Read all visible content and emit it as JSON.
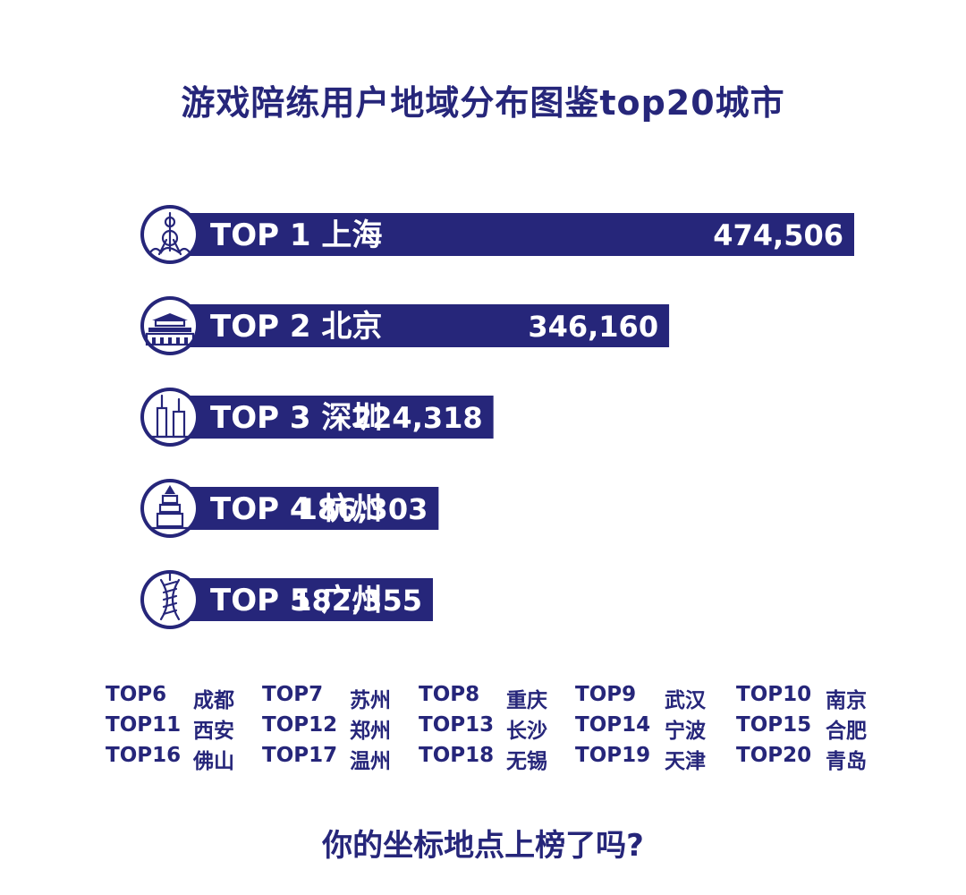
{
  "title": "游戏陪练用户地域分布图鉴top20城市",
  "colors": {
    "brand": "#26267a",
    "background": "#ffffff",
    "bar_text": "#ffffff"
  },
  "chart_data": {
    "type": "bar",
    "orientation": "horizontal",
    "title": "游戏陪练用户地域分布图鉴top20城市",
    "xlabel": "",
    "ylabel": "",
    "grid": false,
    "categories": [
      "TOP 1 上海",
      "TOP 2 北京",
      "TOP 3 深圳",
      "TOP 4 杭州",
      "TOP 5 广州"
    ],
    "values": [
      474506,
      346160,
      224318,
      186303,
      182355
    ],
    "value_labels": [
      "474,506",
      "346,160",
      "224,318",
      "186,303",
      "182,355"
    ],
    "icons": [
      "oriental-pearl-tower-icon",
      "tiananmen-gate-icon",
      "ping-an-tower-icon",
      "leifeng-pagoda-icon",
      "canton-tower-icon"
    ]
  },
  "more_cities": [
    {
      "rank": "TOP6",
      "city": "成都"
    },
    {
      "rank": "TOP7",
      "city": "苏州"
    },
    {
      "rank": "TOP8",
      "city": "重庆"
    },
    {
      "rank": "TOP9",
      "city": "武汉"
    },
    {
      "rank": "TOP10",
      "city": "南京"
    },
    {
      "rank": "TOP11",
      "city": "西安"
    },
    {
      "rank": "TOP12",
      "city": "郑州"
    },
    {
      "rank": "TOP13",
      "city": "长沙"
    },
    {
      "rank": "TOP14",
      "city": "宁波"
    },
    {
      "rank": "TOP15",
      "city": "合肥"
    },
    {
      "rank": "TOP16",
      "city": "佛山"
    },
    {
      "rank": "TOP17",
      "city": "温州"
    },
    {
      "rank": "TOP18",
      "city": "无锡"
    },
    {
      "rank": "TOP19",
      "city": "天津"
    },
    {
      "rank": "TOP20",
      "city": "青岛"
    }
  ],
  "footer": "你的坐标地点上榜了吗?"
}
